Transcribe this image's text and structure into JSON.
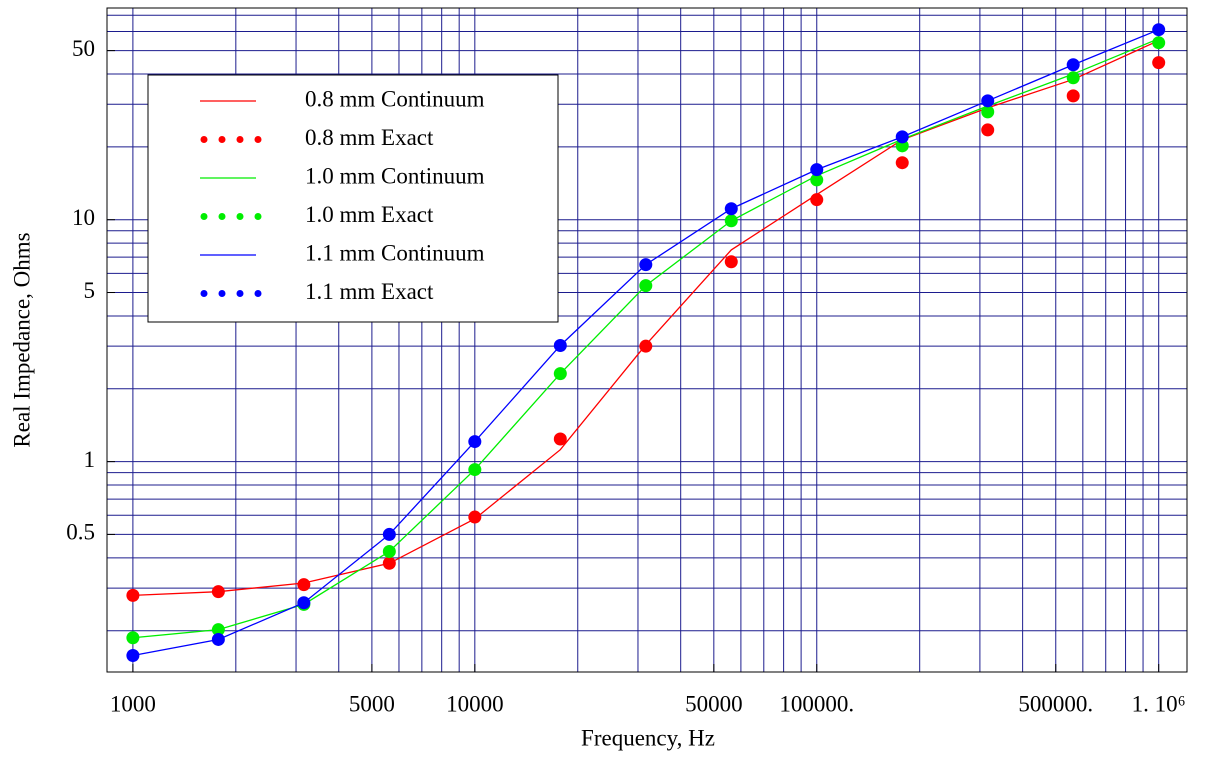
{
  "chart_data": {
    "type": "line",
    "x_label": "Frequency, Hz",
    "y_label": "Real Impedance, Ohms",
    "log_x": true,
    "log_y": true,
    "grid": true,
    "xlim": [
      840,
      1210000
    ],
    "ylim": [
      0.135,
      75
    ],
    "xticks": [
      1000,
      5000,
      10000,
      50000,
      {
        "value": 100000,
        "label": "100000."
      },
      {
        "value": 500000,
        "label": "500000."
      },
      {
        "value": 1000000,
        "label": "1. 10⁶"
      }
    ],
    "yticks": [
      0.5,
      1,
      5,
      10,
      50
    ],
    "xgrid": [
      1000,
      2000,
      3000,
      4000,
      5000,
      6000,
      7000,
      8000,
      9000,
      10000,
      20000,
      30000,
      40000,
      50000,
      60000,
      70000,
      80000,
      90000,
      100000,
      200000,
      300000,
      400000,
      500000,
      600000,
      700000,
      800000,
      900000,
      1000000
    ],
    "ygrid": [
      0.2,
      0.3,
      0.4,
      0.5,
      0.6,
      0.7,
      0.8,
      0.9,
      1,
      2,
      3,
      4,
      5,
      6,
      7,
      8,
      9,
      10,
      20,
      30,
      40,
      50,
      60,
      70
    ],
    "legend": "upper left",
    "x": [
      1000,
      1778,
      3162,
      5623,
      10000,
      17783,
      31623,
      56234,
      100000,
      177828,
      316228,
      562341,
      1000000
    ],
    "series": [
      {
        "name": "0.8 mm Continuum",
        "color": "#ff0000",
        "style": "line",
        "values": [
          0.28,
          0.29,
          0.315,
          0.38,
          0.58,
          1.12,
          3.04,
          7.5,
          12.7,
          21.4,
          29,
          38,
          55
        ]
      },
      {
        "name": "0.8 mm Exact",
        "color": "#ff0000",
        "style": "dots",
        "values": [
          0.28,
          0.29,
          0.31,
          0.38,
          0.59,
          1.24,
          3.0,
          6.7,
          12.1,
          17.2,
          23.5,
          32.5,
          44.6
        ]
      },
      {
        "name": "1.0 mm Continuum",
        "color": "#00ee00",
        "style": "line",
        "values": [
          0.187,
          0.202,
          0.257,
          0.425,
          0.927,
          2.31,
          5.34,
          9.9,
          15.2,
          21.5,
          29.5,
          40,
          56
        ]
      },
      {
        "name": "1.0 mm Exact",
        "color": "#00ee00",
        "style": "dots",
        "values": [
          0.187,
          0.202,
          0.257,
          0.425,
          0.927,
          2.31,
          5.34,
          9.9,
          14.6,
          20.2,
          27.9,
          38.6,
          53.9
        ]
      },
      {
        "name": "1.1 mm Continuum",
        "color": "#0000ff",
        "style": "line",
        "values": [
          0.158,
          0.184,
          0.261,
          0.5,
          1.21,
          3.02,
          6.52,
          11.1,
          16.1,
          22.0,
          31.0,
          43.7,
          61
        ]
      },
      {
        "name": "1.1 mm Exact",
        "color": "#0000ff",
        "style": "dots",
        "values": [
          0.158,
          0.184,
          0.261,
          0.5,
          1.21,
          3.02,
          6.52,
          11.1,
          16.1,
          22.0,
          31.0,
          43.7,
          61
        ]
      }
    ]
  }
}
